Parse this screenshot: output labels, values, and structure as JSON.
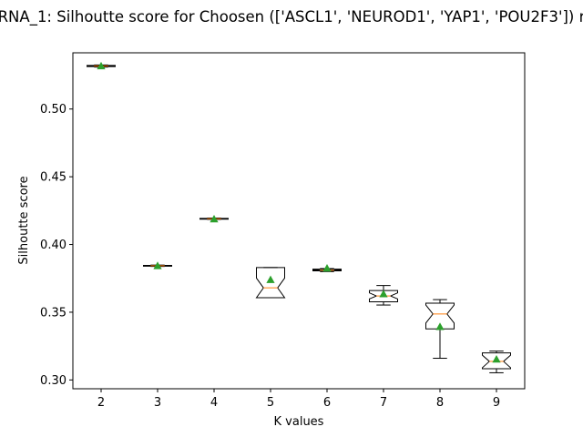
{
  "chart_data": {
    "type": "box",
    "title": "RNA_1: Silhoutte score for Choosen (['ASCL1', 'NEUROD1', 'YAP1', 'POU2F3']) r",
    "xlabel": "K values",
    "ylabel": "Silhoutte score",
    "ylim": [
      0.2935,
      0.5415
    ],
    "grid": false,
    "notched": true,
    "show_means": true,
    "colors": {
      "box": "#000000",
      "median": "#ff7f0e",
      "mean": "#2ca02c"
    },
    "yticks": [
      {
        "value": 0.3,
        "label": "0.30"
      },
      {
        "value": 0.35,
        "label": "0.35"
      },
      {
        "value": 0.4,
        "label": "0.40"
      },
      {
        "value": 0.45,
        "label": "0.45"
      },
      {
        "value": 0.5,
        "label": "0.50"
      }
    ],
    "boxes": [
      {
        "label": "2",
        "whislo": 0.531,
        "q1": 0.5313,
        "med": 0.5318,
        "q3": 0.5322,
        "whishi": 0.5325,
        "mean": 0.5318,
        "notch_lo": 0.5316,
        "notch_hi": 0.532
      },
      {
        "label": "3",
        "whislo": 0.3838,
        "q1": 0.384,
        "med": 0.3843,
        "q3": 0.3846,
        "whishi": 0.3848,
        "mean": 0.3843,
        "notch_lo": 0.3841,
        "notch_hi": 0.3845
      },
      {
        "label": "4",
        "whislo": 0.4185,
        "q1": 0.4187,
        "med": 0.419,
        "q3": 0.4193,
        "whishi": 0.4195,
        "mean": 0.4188,
        "notch_lo": 0.4189,
        "notch_hi": 0.4191
      },
      {
        "label": "5",
        "whislo": 0.3607,
        "q1": 0.3607,
        "med": 0.368,
        "q3": 0.383,
        "whishi": 0.383,
        "mean": 0.374,
        "notch_lo": 0.3607,
        "notch_hi": 0.3752
      },
      {
        "label": "6",
        "whislo": 0.38,
        "q1": 0.3805,
        "med": 0.381,
        "q3": 0.3818,
        "whishi": 0.3822,
        "mean": 0.3825,
        "notch_lo": 0.3807,
        "notch_hi": 0.3813
      },
      {
        "label": "7",
        "whislo": 0.3553,
        "q1": 0.3577,
        "med": 0.362,
        "q3": 0.366,
        "whishi": 0.3697,
        "mean": 0.3635,
        "notch_lo": 0.3598,
        "notch_hi": 0.3643
      },
      {
        "label": "8",
        "whislo": 0.316,
        "q1": 0.3377,
        "med": 0.3487,
        "q3": 0.3567,
        "whishi": 0.3593,
        "mean": 0.3393,
        "notch_lo": 0.342,
        "notch_hi": 0.3553
      },
      {
        "label": "9",
        "whislo": 0.3053,
        "q1": 0.3083,
        "med": 0.3137,
        "q3": 0.32,
        "whishi": 0.3213,
        "mean": 0.3153,
        "notch_lo": 0.309,
        "notch_hi": 0.3183
      }
    ]
  }
}
